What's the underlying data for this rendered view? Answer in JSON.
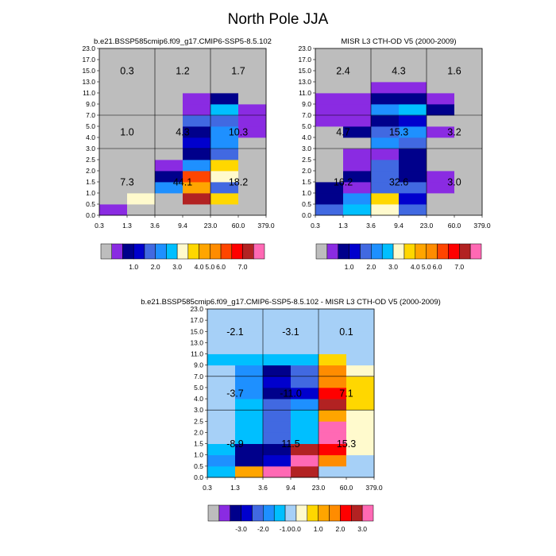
{
  "figure_title": "North Pole JJA",
  "palette": {
    "abs": [
      "#bdbdbd",
      "#8a2be2",
      "#00008b",
      "#0000cd",
      "#4169e1",
      "#1e90ff",
      "#00bfff",
      "#fffacd",
      "#ffd700",
      "#ffa500",
      "#ff8c00",
      "#ff4500",
      "#ff0000",
      "#b22222",
      "#ff69b4"
    ],
    "diff": [
      "#bdbdbd",
      "#8a2be2",
      "#00008b",
      "#0000cd",
      "#4169e1",
      "#1e90ff",
      "#00bfff",
      "#a6d0f7",
      "#fffacd",
      "#ffd700",
      "#ffa500",
      "#ff8c00",
      "#ff0000",
      "#b22222",
      "#ff69b4"
    ]
  },
  "chart_data": [
    {
      "type": "heatmap",
      "name": "model",
      "title": "b.e21.BSSP585cmip6.f09_g17.CMIP6-SSP5-8.5.102",
      "x_ticks": [
        "0.3",
        "1.3",
        "3.6",
        "9.4",
        "23.0",
        "60.0",
        "379.0"
      ],
      "y_ticks": [
        "0.0",
        "0.5",
        "1.0",
        "1.5",
        "2.0",
        "2.5",
        "3.0",
        "4.0",
        "5.0",
        "7.0",
        "9.0",
        "11.0",
        "13.0",
        "15.0",
        "17.0",
        "23.0"
      ],
      "cells": [
        [
          1,
          0,
          0,
          0,
          0,
          0
        ],
        [
          0,
          7,
          0,
          13,
          8,
          0
        ],
        [
          0,
          0,
          5,
          9,
          4,
          0
        ],
        [
          0,
          0,
          2,
          11,
          7,
          0
        ],
        [
          0,
          0,
          1,
          5,
          8,
          0
        ],
        [
          0,
          0,
          0,
          2,
          4,
          0
        ],
        [
          0,
          0,
          0,
          3,
          5,
          0
        ],
        [
          0,
          0,
          0,
          2,
          5,
          1
        ],
        [
          0,
          0,
          0,
          4,
          4,
          1
        ],
        [
          0,
          0,
          0,
          1,
          6,
          1
        ],
        [
          0,
          0,
          0,
          1,
          2,
          0
        ],
        [
          0,
          0,
          0,
          0,
          0,
          0
        ],
        [
          0,
          0,
          0,
          0,
          0,
          0
        ],
        [
          0,
          0,
          0,
          0,
          0,
          0
        ],
        [
          0,
          0,
          0,
          0,
          0,
          0
        ]
      ],
      "groups": [
        {
          "value": "0.3",
          "xi": 1,
          "yi": 13
        },
        {
          "value": "1.2",
          "xi": 3,
          "yi": 13
        },
        {
          "value": "1.7",
          "xi": 5,
          "yi": 13
        },
        {
          "value": "1.0",
          "xi": 1,
          "yi": 7.5
        },
        {
          "value": "4.3",
          "xi": 3,
          "yi": 7.5
        },
        {
          "value": "10.3",
          "xi": 5,
          "yi": 7.5
        },
        {
          "value": "7.3",
          "xi": 1,
          "yi": 3.0
        },
        {
          "value": "44.1",
          "xi": 3,
          "yi": 3.0
        },
        {
          "value": "18.2",
          "xi": 5,
          "yi": 3.0
        }
      ],
      "colorbar": {
        "palette": "abs",
        "labels": [
          {
            "text": "1.0",
            "after": 2
          },
          {
            "text": "2.0",
            "after": 4
          },
          {
            "text": "3.0",
            "after": 6
          },
          {
            "text": "4.0",
            "after": 8
          },
          {
            "text": "5.0",
            "after": 9
          },
          {
            "text": "6.0",
            "after": 10
          },
          {
            "text": "7.0",
            "after": 12
          }
        ]
      }
    },
    {
      "type": "heatmap",
      "name": "obs",
      "title": "MISR L3 CTH-OD V5 (2000-2009)",
      "x_ticks": [
        "0.3",
        "1.3",
        "3.6",
        "9.4",
        "23.0",
        "60.0",
        "379.0"
      ],
      "y_ticks": [
        "0.0",
        "0.5",
        "1.0",
        "1.5",
        "2.0",
        "2.5",
        "3.0",
        "4.0",
        "5.0",
        "7.0",
        "9.0",
        "11.0",
        "13.0",
        "15.0",
        "17.0",
        "23.0"
      ],
      "cells": [
        [
          4,
          6,
          7,
          4,
          0,
          0
        ],
        [
          2,
          5,
          8,
          3,
          0,
          0
        ],
        [
          2,
          1,
          4,
          4,
          1,
          0
        ],
        [
          0,
          2,
          4,
          2,
          1,
          0
        ],
        [
          0,
          1,
          4,
          2,
          0,
          0
        ],
        [
          0,
          1,
          1,
          2,
          0,
          0
        ],
        [
          0,
          0,
          5,
          4,
          0,
          0
        ],
        [
          0,
          2,
          4,
          5,
          1,
          0
        ],
        [
          1,
          1,
          2,
          3,
          0,
          0
        ],
        [
          1,
          1,
          5,
          6,
          2,
          0
        ],
        [
          1,
          1,
          2,
          2,
          1,
          0
        ],
        [
          0,
          0,
          1,
          1,
          0,
          0
        ],
        [
          0,
          0,
          0,
          0,
          0,
          0
        ],
        [
          0,
          0,
          0,
          0,
          0,
          0
        ],
        [
          0,
          0,
          0,
          0,
          0,
          0
        ]
      ],
      "groups": [
        {
          "value": "2.4",
          "xi": 1,
          "yi": 13
        },
        {
          "value": "4.3",
          "xi": 3,
          "yi": 13
        },
        {
          "value": "1.6",
          "xi": 5,
          "yi": 13
        },
        {
          "value": "4.7",
          "xi": 1,
          "yi": 7.5
        },
        {
          "value": "15.3",
          "xi": 3,
          "yi": 7.5
        },
        {
          "value": "3.2",
          "xi": 5,
          "yi": 7.5
        },
        {
          "value": "16.2",
          "xi": 1,
          "yi": 3.0
        },
        {
          "value": "32.6",
          "xi": 3,
          "yi": 3.0
        },
        {
          "value": "3.0",
          "xi": 5,
          "yi": 3.0
        }
      ],
      "colorbar": {
        "palette": "abs",
        "labels": [
          {
            "text": "1.0",
            "after": 2
          },
          {
            "text": "2.0",
            "after": 4
          },
          {
            "text": "3.0",
            "after": 6
          },
          {
            "text": "4.0",
            "after": 8
          },
          {
            "text": "5.0",
            "after": 9
          },
          {
            "text": "6.0",
            "after": 10
          },
          {
            "text": "7.0",
            "after": 12
          }
        ]
      }
    },
    {
      "type": "heatmap",
      "name": "difference",
      "title": "b.e21.BSSP585cmip6.f09_g17.CMIP6-SSP5-8.5.102 - MISR L3 CTH-OD V5 (2000-2009)",
      "x_ticks": [
        "0.3",
        "1.3",
        "3.6",
        "9.4",
        "23.0",
        "60.0",
        "379.0"
      ],
      "y_ticks": [
        "0.0",
        "0.5",
        "1.0",
        "1.5",
        "2.0",
        "2.5",
        "3.0",
        "4.0",
        "5.0",
        "7.0",
        "9.0",
        "11.0",
        "13.0",
        "15.0",
        "17.0",
        "23.0"
      ],
      "cells": [
        [
          6,
          10,
          14,
          13,
          7,
          7
        ],
        [
          5,
          2,
          3,
          14,
          11,
          7
        ],
        [
          6,
          2,
          2,
          13,
          12,
          8
        ],
        [
          7,
          6,
          4,
          6,
          14,
          8
        ],
        [
          7,
          6,
          4,
          6,
          14,
          8
        ],
        [
          7,
          6,
          4,
          6,
          10,
          8
        ],
        [
          7,
          6,
          4,
          5,
          13,
          9
        ],
        [
          7,
          5,
          2,
          3,
          12,
          9
        ],
        [
          7,
          5,
          3,
          4,
          11,
          9
        ],
        [
          7,
          5,
          2,
          4,
          11,
          8
        ],
        [
          6,
          6,
          6,
          6,
          9,
          7
        ],
        [
          7,
          7,
          7,
          7,
          7,
          7
        ],
        [
          7,
          7,
          7,
          7,
          7,
          7
        ],
        [
          7,
          7,
          7,
          7,
          7,
          7
        ],
        [
          7,
          7,
          7,
          7,
          7,
          7
        ]
      ],
      "groups": [
        {
          "value": "-2.1",
          "xi": 1,
          "yi": 13
        },
        {
          "value": "-3.1",
          "xi": 3,
          "yi": 13
        },
        {
          "value": "0.1",
          "xi": 5,
          "yi": 13
        },
        {
          "value": "-3.7",
          "xi": 1,
          "yi": 7.5
        },
        {
          "value": "-11.0",
          "xi": 3,
          "yi": 7.5
        },
        {
          "value": "7.1",
          "xi": 5,
          "yi": 7.5
        },
        {
          "value": "-8.9",
          "xi": 1,
          "yi": 3.0
        },
        {
          "value": "11.5",
          "xi": 3,
          "yi": 3.0
        },
        {
          "value": "15.3",
          "xi": 5,
          "yi": 3.0
        }
      ],
      "colorbar": {
        "palette": "diff",
        "labels": [
          {
            "text": "-3.0",
            "after": 2
          },
          {
            "text": "-2.0",
            "after": 4
          },
          {
            "text": "-1.0",
            "after": 6
          },
          {
            "text": "0.0",
            "after": 7
          },
          {
            "text": "1.0",
            "after": 9
          },
          {
            "text": "2.0",
            "after": 11
          },
          {
            "text": "3.0",
            "after": 13
          }
        ]
      }
    }
  ]
}
